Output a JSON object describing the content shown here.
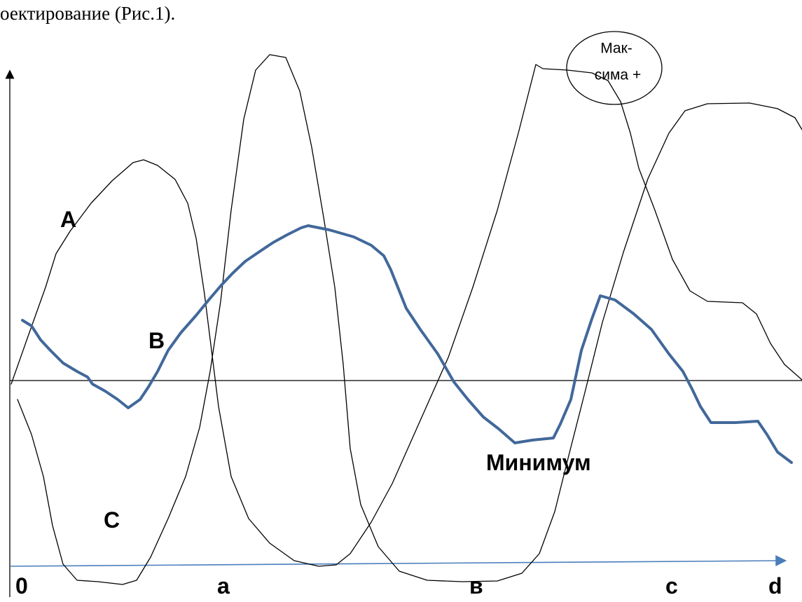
{
  "caption": "оектирование (Рис.1).",
  "bubble": {
    "line1": "Мак-",
    "line2": "сима +"
  },
  "curve_labels": {
    "a": "А",
    "b": "В",
    "c": "С",
    "minimum": "Минимум"
  },
  "axis_labels": [
    "0",
    "а",
    "в",
    "с",
    "d"
  ]
}
